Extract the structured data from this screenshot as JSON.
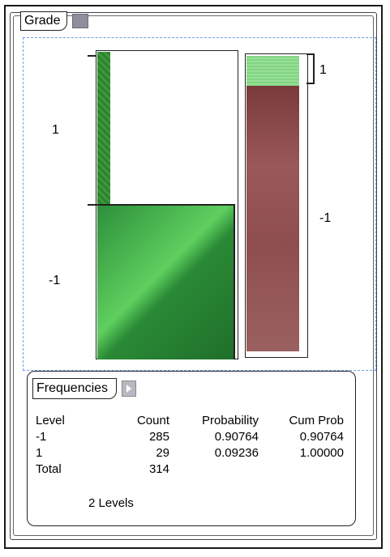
{
  "panel": {
    "title": "Grade"
  },
  "mosaic": {
    "y_labels": [
      "1",
      "-1"
    ],
    "right_labels": [
      "1",
      "-1"
    ]
  },
  "frequencies": {
    "title": "Frequencies",
    "columns": [
      "Level",
      "Count",
      "Probability",
      "Cum Prob"
    ],
    "rows": [
      [
        "-1",
        "285",
        "0.90764",
        "0.90764"
      ],
      [
        "1",
        "29",
        "0.09236",
        "1.00000"
      ]
    ],
    "total": {
      "label": "Total",
      "count": "314"
    },
    "levels_note": "2 Levels"
  },
  "colors": {
    "level_1_green": "#3fa03f",
    "level_neg1_red": "#8f4e4e",
    "plot_border_blue": "#6aa0e6"
  }
}
